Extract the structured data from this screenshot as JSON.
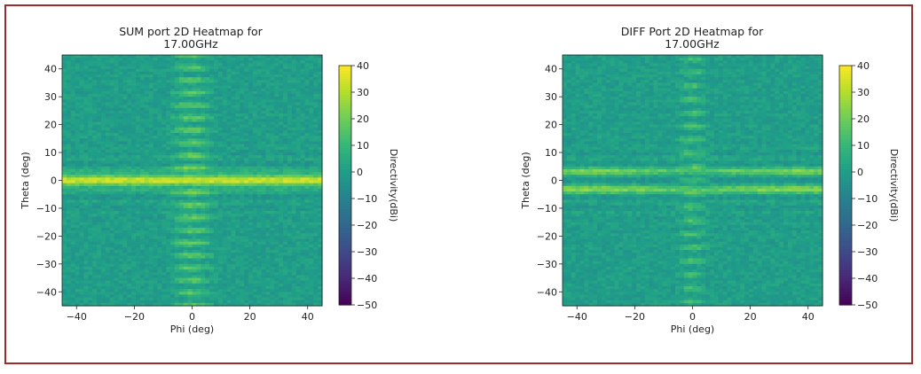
{
  "chart_data": [
    {
      "type": "heatmap",
      "title_line1": "SUM port 2D Heatmap for",
      "title_line2": "17.00GHz",
      "xlabel": "Phi (deg)",
      "ylabel": "Theta (deg)",
      "xlim": [
        -45,
        45
      ],
      "ylim": [
        -45,
        45
      ],
      "xticks": [
        -40,
        -20,
        0,
        20,
        40
      ],
      "xtick_labels": [
        "−40",
        "−20",
        "0",
        "20",
        "40"
      ],
      "yticks": [
        40,
        30,
        20,
        10,
        0,
        -10,
        -20,
        -30,
        -40
      ],
      "ytick_labels": [
        "40",
        "30",
        "20",
        "10",
        "0",
        "−10",
        "−20",
        "−30",
        "−40"
      ],
      "colorbar_label": "Directivity(dBi)",
      "colorbar_range": [
        -50,
        40
      ],
      "colorbar_ticks": [
        40,
        30,
        20,
        10,
        0,
        -10,
        -20,
        -30,
        -40,
        -50
      ],
      "colorbar_tick_labels": [
        "40",
        "30",
        "20",
        "10",
        "0",
        "−10",
        "−20",
        "−30",
        "−40",
        "−50"
      ],
      "colormap": "viridis",
      "pattern": "sum",
      "main_beam": {
        "theta": 0,
        "phi_range": [
          -45,
          45
        ],
        "peak_dbi": 30
      },
      "vertical_lobe": {
        "phi": 0,
        "level_dbi": 10
      }
    },
    {
      "type": "heatmap",
      "title_line1": "DIFF Port 2D Heatmap for",
      "title_line2": "17.00GHz",
      "xlabel": "Phi (deg)",
      "ylabel": "Theta (deg)",
      "xlim": [
        -45,
        45
      ],
      "ylim": [
        -45,
        45
      ],
      "xticks": [
        -40,
        -20,
        0,
        20,
        40
      ],
      "xtick_labels": [
        "−40",
        "−20",
        "0",
        "20",
        "40"
      ],
      "yticks": [
        40,
        30,
        20,
        10,
        0,
        -10,
        -20,
        -30,
        -40
      ],
      "ytick_labels": [
        "40",
        "30",
        "20",
        "10",
        "0",
        "−10",
        "−20",
        "−30",
        "−40"
      ],
      "colorbar_label": "Directivity(dBi)",
      "colorbar_range": [
        -50,
        40
      ],
      "colorbar_ticks": [
        40,
        30,
        20,
        10,
        0,
        -10,
        -20,
        -30,
        -40,
        -50
      ],
      "colorbar_tick_labels": [
        "40",
        "30",
        "20",
        "10",
        "0",
        "−10",
        "−20",
        "−30",
        "−40",
        "−50"
      ],
      "colormap": "viridis",
      "pattern": "diff",
      "lobes": [
        {
          "theta": 3,
          "peak_dbi": 22
        },
        {
          "theta": -3,
          "peak_dbi": 24
        }
      ],
      "null": {
        "theta": 0
      },
      "vertical_lobe": {
        "phi": 0,
        "level_dbi": 10
      }
    }
  ],
  "frame_color": "#9b2c2c"
}
